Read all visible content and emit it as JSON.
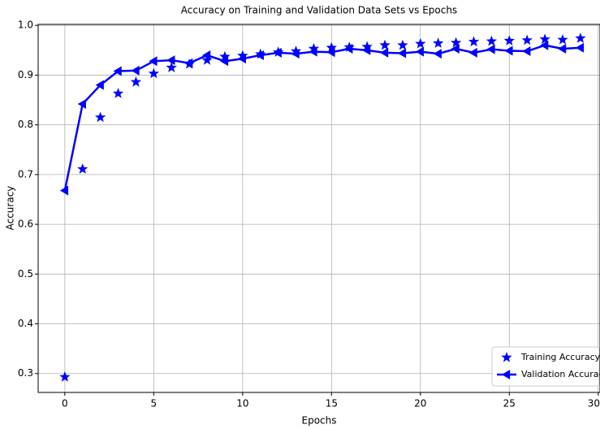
{
  "chart_data": {
    "type": "line",
    "title": "Accuracy on Training and Validation Data Sets vs Epochs",
    "x_label": "Epochs",
    "y_label": "Accuracy",
    "x": [
      0,
      1,
      2,
      3,
      4,
      5,
      6,
      7,
      8,
      9,
      10,
      11,
      12,
      13,
      14,
      15,
      16,
      17,
      18,
      19,
      20,
      21,
      22,
      23,
      24,
      25,
      26,
      27,
      28,
      29
    ],
    "series": [
      {
        "name": "Training Accuracy",
        "color": "#0000ff",
        "marker": "star",
        "line": false,
        "values": [
          0.293,
          0.711,
          0.815,
          0.863,
          0.886,
          0.903,
          0.915,
          0.922,
          0.93,
          0.937,
          0.939,
          0.942,
          0.946,
          0.948,
          0.953,
          0.955,
          0.956,
          0.957,
          0.96,
          0.96,
          0.963,
          0.964,
          0.965,
          0.967,
          0.968,
          0.969,
          0.97,
          0.972,
          0.971,
          0.974
        ]
      },
      {
        "name": "Validation Accuracy",
        "color": "#0000ff",
        "marker": "triangle-left",
        "line": true,
        "values": [
          0.668,
          0.842,
          0.88,
          0.908,
          0.909,
          0.928,
          0.93,
          0.924,
          0.94,
          0.928,
          0.933,
          0.94,
          0.945,
          0.943,
          0.947,
          0.946,
          0.953,
          0.95,
          0.945,
          0.944,
          0.947,
          0.943,
          0.953,
          0.945,
          0.952,
          0.949,
          0.948,
          0.96,
          0.953,
          0.955
        ]
      }
    ],
    "xlim": [
      -1.5,
      30.1
    ],
    "ylim": [
      0.262,
      1.002
    ],
    "xticks": [
      0,
      5,
      10,
      15,
      20,
      25,
      30
    ],
    "yticks": [
      0.3,
      0.4,
      0.5,
      0.6,
      0.7,
      0.8,
      0.9,
      {
        "value": 1,
        "label": "1.0"
      }
    ],
    "grid": true,
    "legend": "lower right"
  }
}
